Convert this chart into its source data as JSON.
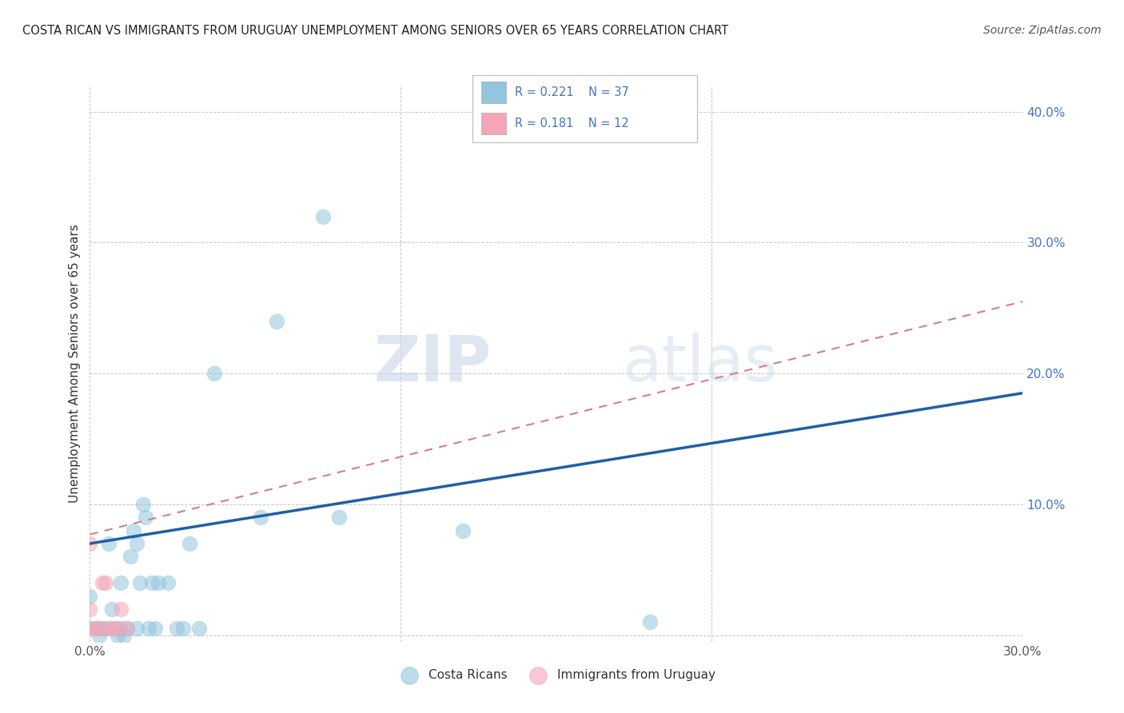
{
  "title": "COSTA RICAN VS IMMIGRANTS FROM URUGUAY UNEMPLOYMENT AMONG SENIORS OVER 65 YEARS CORRELATION CHART",
  "source": "Source: ZipAtlas.com",
  "ylabel": "Unemployment Among Seniors over 65 years",
  "xlim": [
    0.0,
    0.3
  ],
  "ylim": [
    -0.005,
    0.42
  ],
  "legend_r1": "R = 0.221",
  "legend_n1": "N = 37",
  "legend_r2": "R = 0.181",
  "legend_n2": "N = 12",
  "color_blue": "#92c5de",
  "color_pink": "#f4a6b8",
  "color_blue_line": "#1f5fa6",
  "color_pink_line": "#d08090",
  "background_color": "#ffffff",
  "watermark_zip": "ZIP",
  "watermark_atlas": "atlas",
  "costa_rican_x": [
    0.0,
    0.0,
    0.002,
    0.003,
    0.004,
    0.005,
    0.006,
    0.007,
    0.008,
    0.009,
    0.01,
    0.01,
    0.011,
    0.012,
    0.013,
    0.014,
    0.015,
    0.015,
    0.016,
    0.017,
    0.018,
    0.019,
    0.02,
    0.021,
    0.022,
    0.025,
    0.028,
    0.03,
    0.032,
    0.035,
    0.04,
    0.055,
    0.06,
    0.075,
    0.08,
    0.12,
    0.18
  ],
  "costa_rican_y": [
    0.005,
    0.03,
    0.005,
    0.0,
    0.005,
    0.005,
    0.07,
    0.02,
    0.005,
    0.0,
    0.04,
    0.005,
    0.0,
    0.005,
    0.06,
    0.08,
    0.07,
    0.005,
    0.04,
    0.1,
    0.09,
    0.005,
    0.04,
    0.005,
    0.04,
    0.04,
    0.005,
    0.005,
    0.07,
    0.005,
    0.2,
    0.09,
    0.24,
    0.32,
    0.09,
    0.08,
    0.01
  ],
  "uruguay_x": [
    0.0,
    0.0,
    0.0,
    0.002,
    0.003,
    0.004,
    0.005,
    0.006,
    0.007,
    0.009,
    0.01,
    0.012
  ],
  "uruguay_y": [
    0.005,
    0.02,
    0.07,
    0.005,
    0.005,
    0.04,
    0.04,
    0.005,
    0.005,
    0.005,
    0.02,
    0.005
  ],
  "blue_line_x0": 0.0,
  "blue_line_y0": 0.07,
  "blue_line_x1": 0.3,
  "blue_line_y1": 0.185,
  "pink_line_x0": 0.0,
  "pink_line_y0": 0.077,
  "pink_line_x1": 0.3,
  "pink_line_y1": 0.255
}
